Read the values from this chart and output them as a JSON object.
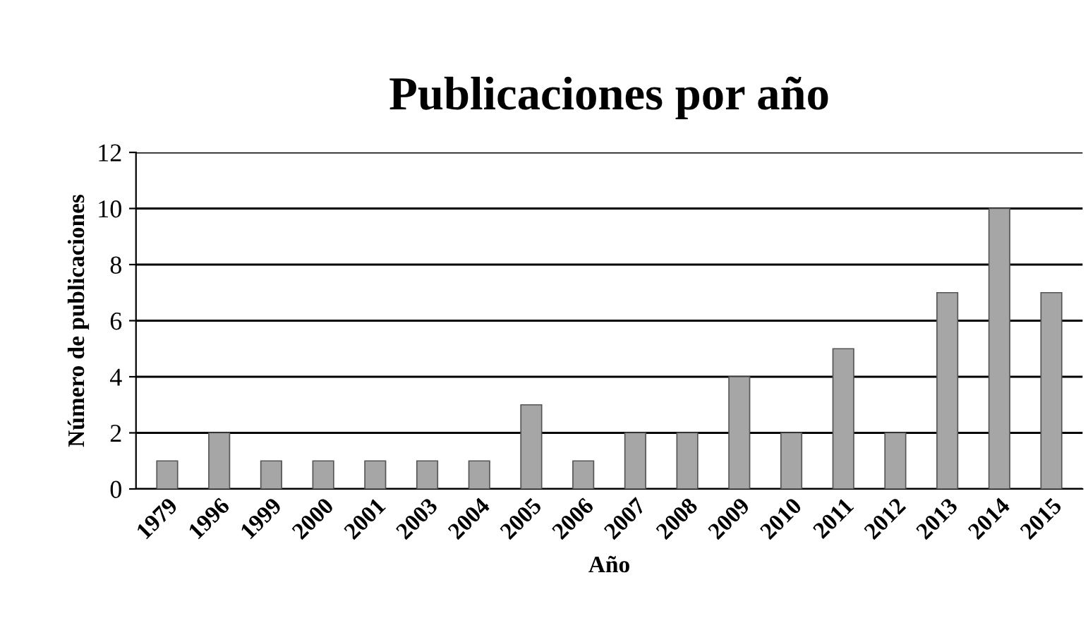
{
  "chart_data": {
    "type": "bar",
    "title": "Publicaciones por año",
    "xlabel": "Año",
    "ylabel": "Número de publicaciones",
    "categories": [
      "1979",
      "1996",
      "1999",
      "2000",
      "2001",
      "2003",
      "2004",
      "2005",
      "2006",
      "2007",
      "2008",
      "2009",
      "2010",
      "2011",
      "2012",
      "2013",
      "2014",
      "2015"
    ],
    "values": [
      1,
      2,
      1,
      1,
      1,
      1,
      1,
      3,
      1,
      2,
      2,
      4,
      2,
      5,
      2,
      7,
      10,
      7
    ],
    "color": "#a6a6a6",
    "ylim": [
      0,
      12
    ],
    "yticks": [
      0,
      2,
      4,
      6,
      8,
      10,
      12
    ],
    "grid": "y",
    "legend": false
  }
}
